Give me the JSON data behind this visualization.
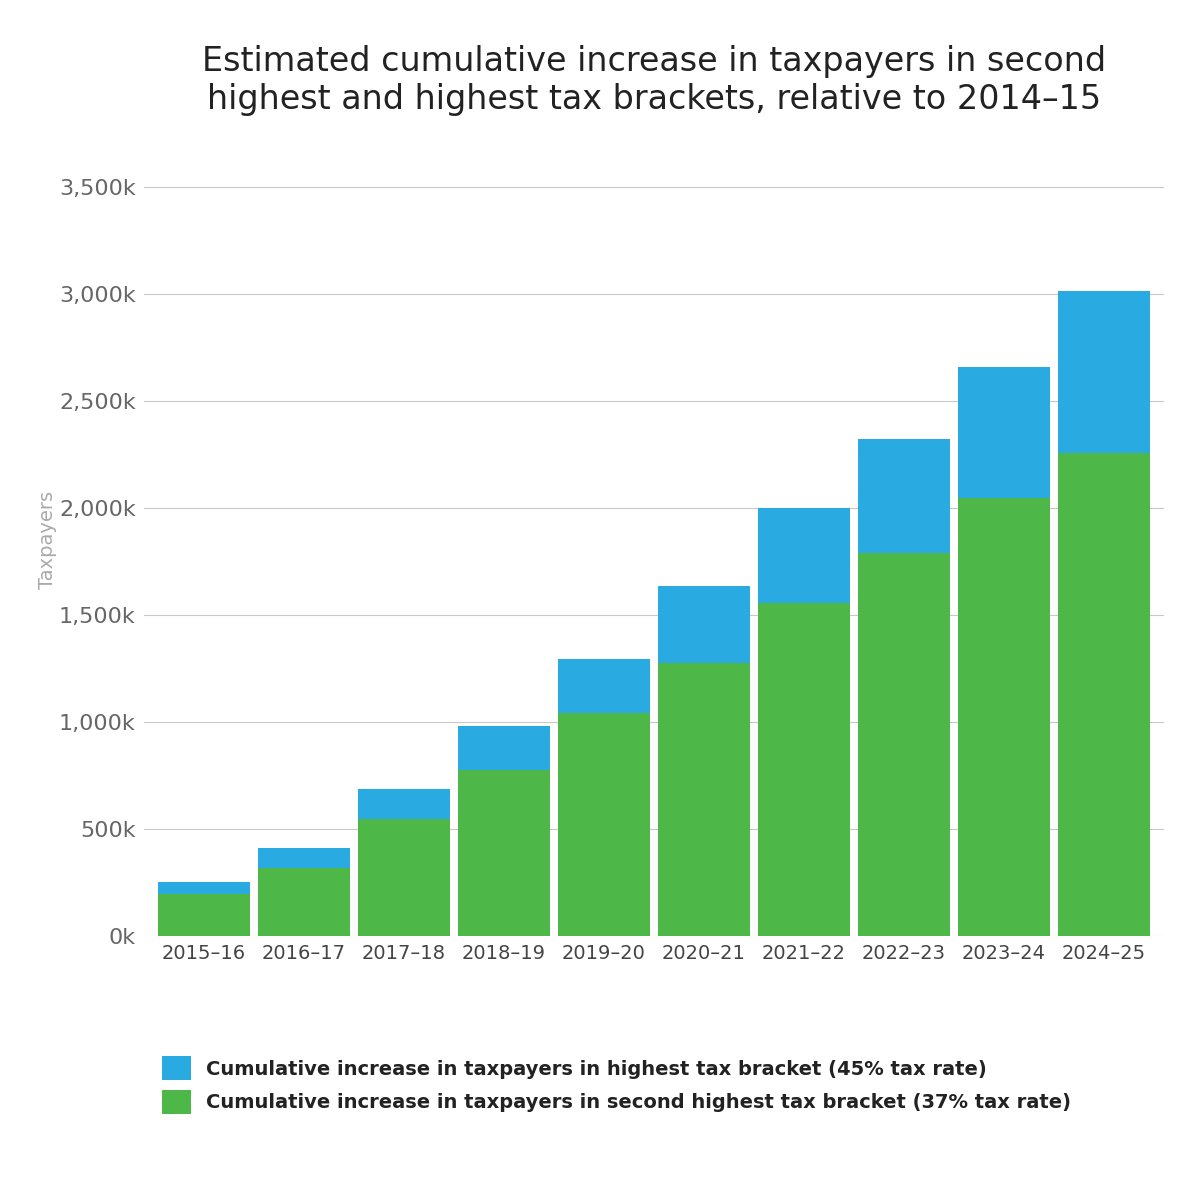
{
  "categories": [
    "2015–16",
    "2016–17",
    "2017–18",
    "2018–19",
    "2019–20",
    "2020–21",
    "2021–22",
    "2022–23",
    "2023–24",
    "2024–25"
  ],
  "green_values": [
    195000,
    320000,
    545000,
    775000,
    1040000,
    1275000,
    1555000,
    1790000,
    2045000,
    2255000
  ],
  "blue_values": [
    55000,
    90000,
    140000,
    205000,
    255000,
    360000,
    445000,
    530000,
    615000,
    760000
  ],
  "title_line1": "Estimated cumulative increase in taxpayers in second",
  "title_line2": "highest and highest tax brackets, relative to 2014–15",
  "ylabel": "Taxpayers",
  "yticks": [
    0,
    500000,
    1000000,
    1500000,
    2000000,
    2500000,
    3000000,
    3500000
  ],
  "ytick_labels": [
    "0k",
    "500k",
    "1,000k",
    "1,500k",
    "2,000k",
    "2,500k",
    "3,000k",
    "3,500k"
  ],
  "ylim_max": 3700000,
  "green_color": "#4db848",
  "blue_color": "#29abe2",
  "background_color": "#ffffff",
  "grid_color": "#c8c8c8",
  "legend_green": "Cumulative increase in taxpayers in second highest tax bracket (37% tax rate)",
  "legend_blue": "Cumulative increase in taxpayers in highest tax bracket (45% tax rate)",
  "title_fontsize": 24,
  "ylabel_fontsize": 14,
  "ytick_fontsize": 16,
  "xtick_fontsize": 14,
  "legend_fontsize": 14,
  "bar_width": 0.92
}
